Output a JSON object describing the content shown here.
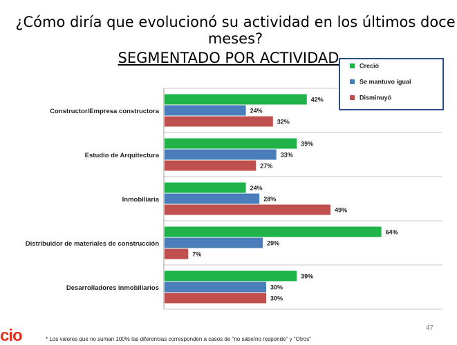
{
  "header": {
    "question": "¿Cómo diría que evolucionó su actividad en los últimos doce meses?",
    "subtitle": "SEGMENTADO POR ACTIVIDAD"
  },
  "legend": {
    "items": [
      {
        "label": "Creció",
        "color": "#1fb34a"
      },
      {
        "label": "Se mantuvo igual",
        "color": "#4a7ebb"
      },
      {
        "label": "Disminuyó",
        "color": "#c0504d"
      }
    ]
  },
  "chart_data": {
    "type": "bar",
    "orientation": "horizontal",
    "categories": [
      "Constructor/Empresa constructora",
      "Estudio de Arquitectura",
      "Inmobiliaria",
      "Distribuidor de materiales de construcción",
      "Desarrolladores inmobiliarios"
    ],
    "series": [
      {
        "name": "Creció",
        "color": "#1fb34a",
        "values": [
          42,
          39,
          24,
          64,
          39
        ]
      },
      {
        "name": "Se mantuvo igual",
        "color": "#4a7ebb",
        "values": [
          24,
          33,
          28,
          29,
          30
        ]
      },
      {
        "name": "Disminuyó",
        "color": "#c0504d",
        "values": [
          32,
          27,
          49,
          7,
          30
        ]
      }
    ],
    "value_suffix": "%",
    "xlim": [
      0,
      100
    ],
    "grid": "horizontal separators",
    "legend_position": "top-right"
  },
  "footer": {
    "page_number": "47",
    "logo_text": "cio",
    "note": "* Los valores que no suman 100% las diferencias corresponden a casos de \"no sabe/no responde\" y \"Otros\""
  }
}
